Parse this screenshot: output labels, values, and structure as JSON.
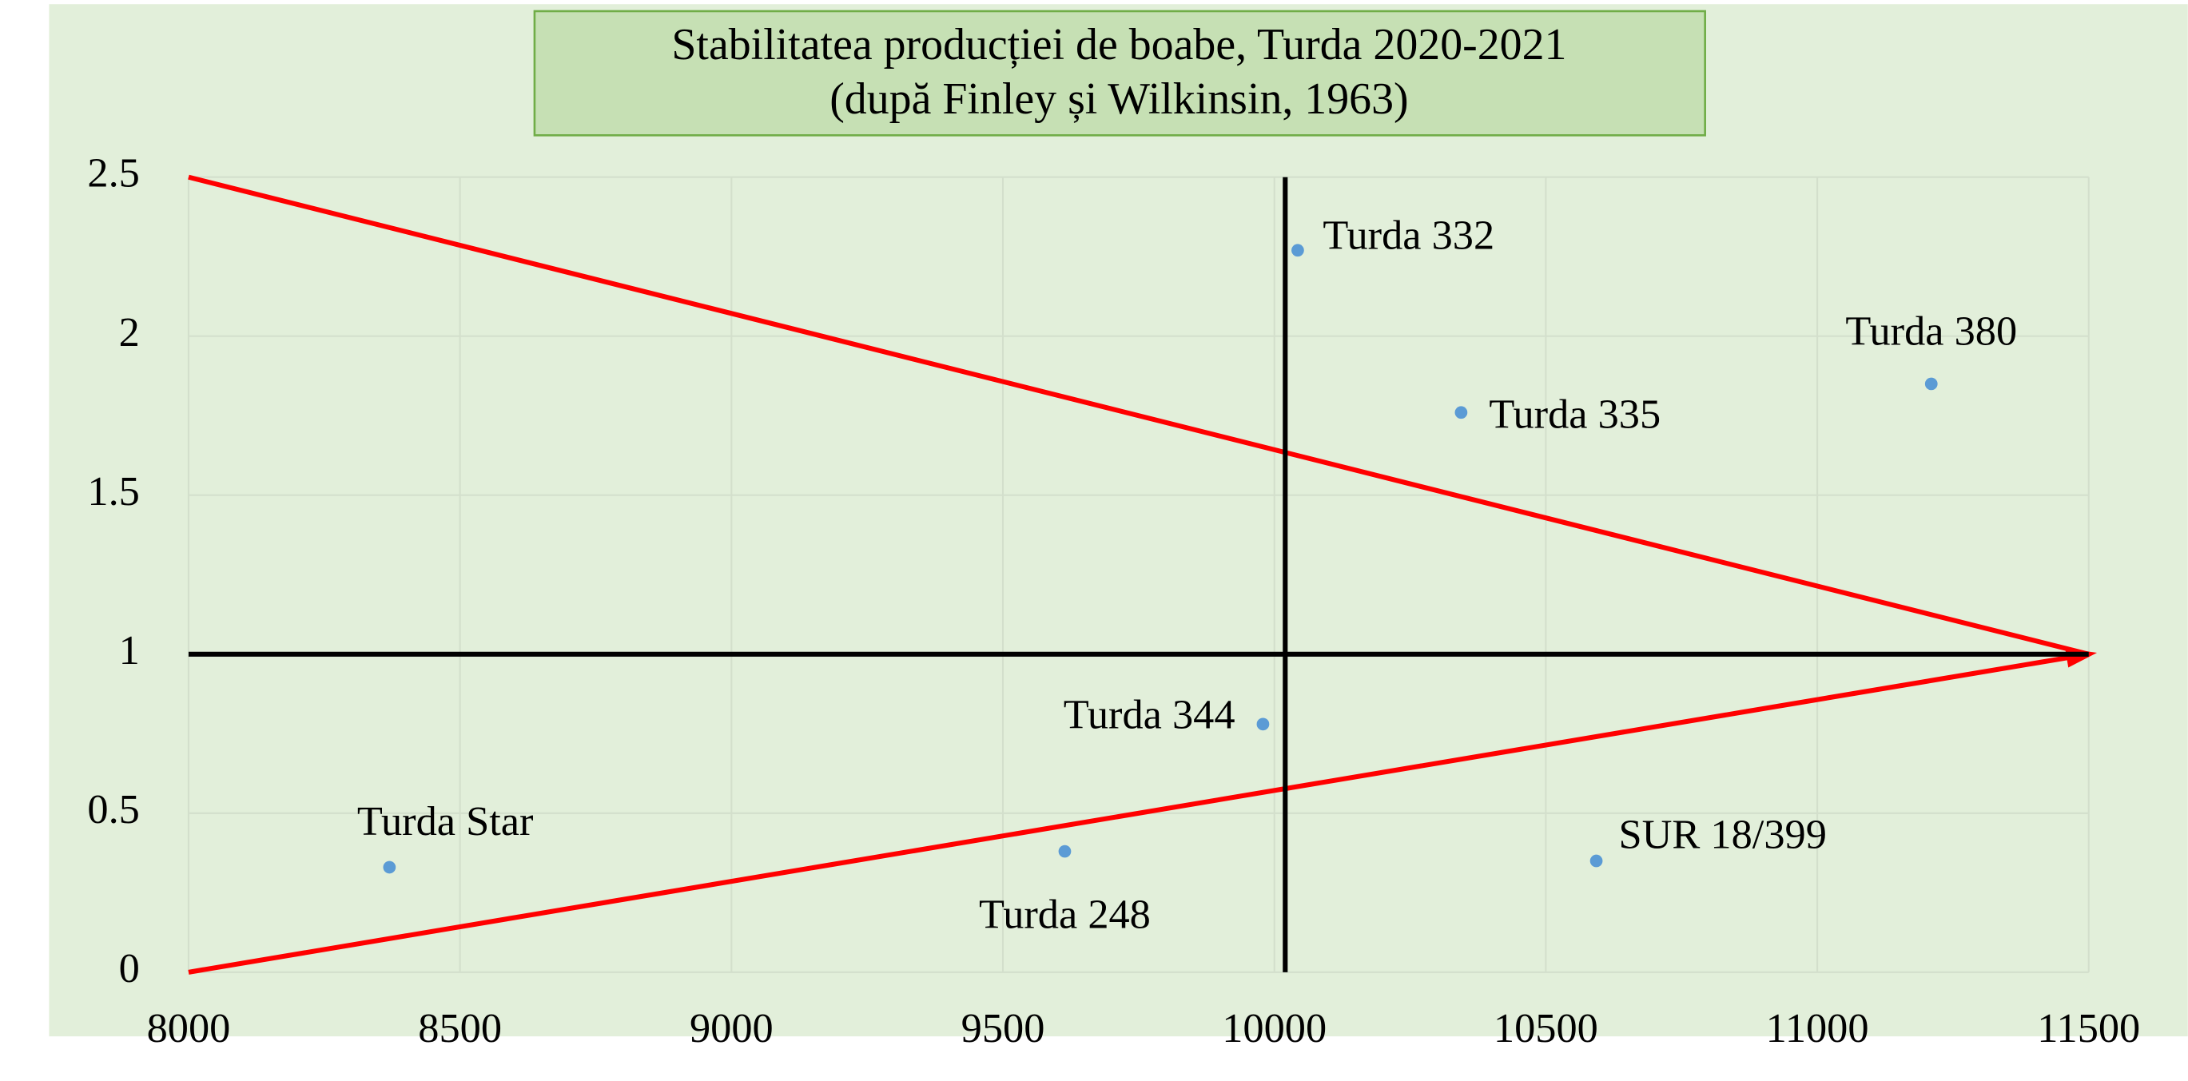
{
  "chart_data": {
    "type": "scatter",
    "title": "Stabilitatea producției de boabe, Turda 2020-2021",
    "subtitle": "(după Finley și Wilkinsin, 1963)",
    "x": [
      8370,
      9614,
      9979,
      10043,
      10344,
      11210,
      10593
    ],
    "values": [
      0.33,
      0.38,
      0.78,
      2.27,
      1.76,
      1.85,
      0.35
    ],
    "labels": [
      "Turda Star",
      "Turda 248",
      "Turda 344",
      "Turda 332",
      "Turda 335",
      "Turda 380",
      "SUR 18/399"
    ],
    "color": "#5b9bd5",
    "xlim": [
      8000,
      11500
    ],
    "xticks": [
      8000,
      8500,
      9000,
      9500,
      10000,
      10500,
      11000,
      11500
    ],
    "ylim": [
      0,
      2.5
    ],
    "yticks": [
      0,
      0.5,
      1,
      1.5,
      2,
      2.5
    ],
    "grid": true,
    "lines": [
      {
        "x": [
          8000,
          11500
        ],
        "y": [
          2.5,
          1
        ],
        "color": "#ff0000"
      },
      {
        "x": [
          8000,
          11500
        ],
        "y": [
          0,
          1
        ],
        "color": "#ff0000",
        "arrow": true
      },
      {
        "x": [
          8000,
          11500
        ],
        "y": [
          1,
          1
        ],
        "color": "#000000"
      },
      {
        "x": [
          10020,
          10020
        ],
        "y": [
          0,
          2.5
        ],
        "color": "#000000"
      }
    ]
  }
}
